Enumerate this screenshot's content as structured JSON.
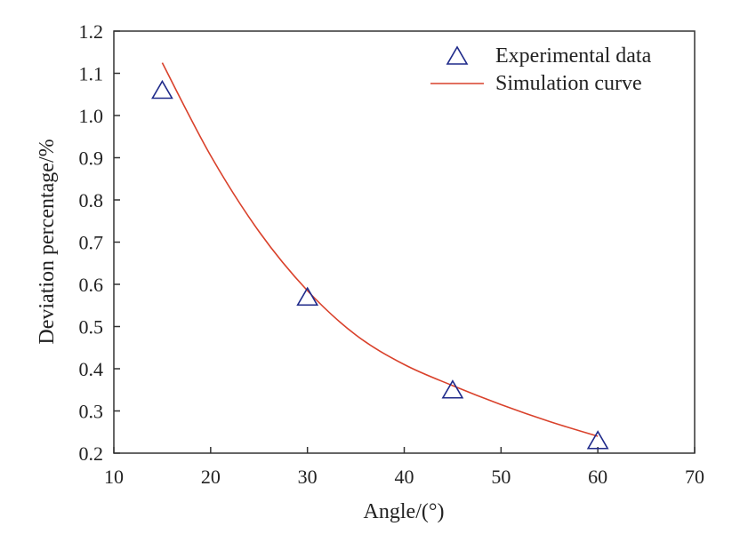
{
  "chart_data": {
    "type": "scatter",
    "title": "",
    "xlabel": "Angle/(°)",
    "ylabel": "Deviation percentage/%",
    "xlim": [
      10,
      70
    ],
    "ylim": [
      0.2,
      1.2
    ],
    "xticks": [
      "10",
      "20",
      "30",
      "40",
      "50",
      "60",
      "70"
    ],
    "yticks": [
      "0.2",
      "0.3",
      "0.4",
      "0.5",
      "0.6",
      "0.7",
      "0.8",
      "0.9",
      "1.0",
      "1.1",
      "1.2"
    ],
    "grid": false,
    "legend_position": "top-right",
    "series": [
      {
        "name": "Experimental data",
        "type": "scatter",
        "marker": "triangle",
        "color": "#1f2a8a",
        "x": [
          15,
          30,
          45,
          60
        ],
        "y": [
          1.06,
          0.57,
          0.35,
          0.23
        ]
      },
      {
        "name": "Simulation curve",
        "type": "line",
        "color": "#d9412b",
        "x": [
          15,
          20,
          25,
          30,
          35,
          40,
          45,
          50,
          55,
          60
        ],
        "y": [
          1.125,
          0.905,
          0.725,
          0.585,
          0.48,
          0.41,
          0.36,
          0.315,
          0.275,
          0.24
        ]
      }
    ]
  }
}
